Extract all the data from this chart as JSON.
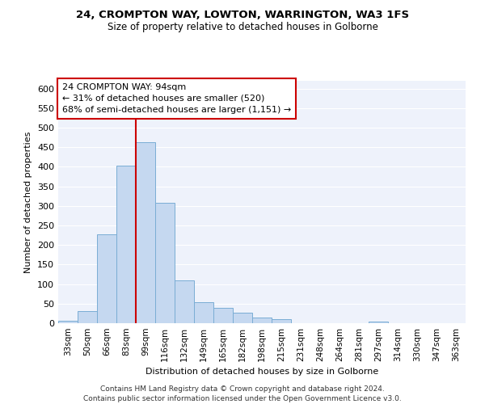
{
  "title1": "24, CROMPTON WAY, LOWTON, WARRINGTON, WA3 1FS",
  "title2": "Size of property relative to detached houses in Golborne",
  "xlabel": "Distribution of detached houses by size in Golborne",
  "ylabel": "Number of detached properties",
  "bar_color": "#c5d8f0",
  "bar_edge_color": "#7aadd4",
  "categories": [
    "33sqm",
    "50sqm",
    "66sqm",
    "83sqm",
    "99sqm",
    "116sqm",
    "132sqm",
    "149sqm",
    "165sqm",
    "182sqm",
    "198sqm",
    "215sqm",
    "231sqm",
    "248sqm",
    "264sqm",
    "281sqm",
    "297sqm",
    "314sqm",
    "330sqm",
    "347sqm",
    "363sqm"
  ],
  "values": [
    7,
    30,
    228,
    403,
    463,
    307,
    110,
    54,
    40,
    27,
    14,
    11,
    0,
    0,
    0,
    0,
    5,
    0,
    0,
    0,
    0
  ],
  "vline_color": "#cc0000",
  "annotation_text": "24 CROMPTON WAY: 94sqm\n← 31% of detached houses are smaller (520)\n68% of semi-detached houses are larger (1,151) →",
  "annotation_box_color": "#cc0000",
  "ylim": [
    0,
    620
  ],
  "yticks": [
    0,
    50,
    100,
    150,
    200,
    250,
    300,
    350,
    400,
    450,
    500,
    550,
    600
  ],
  "bg_color": "#eef2fb",
  "grid_color": "#ffffff",
  "footer1": "Contains HM Land Registry data © Crown copyright and database right 2024.",
  "footer2": "Contains public sector information licensed under the Open Government Licence v3.0."
}
